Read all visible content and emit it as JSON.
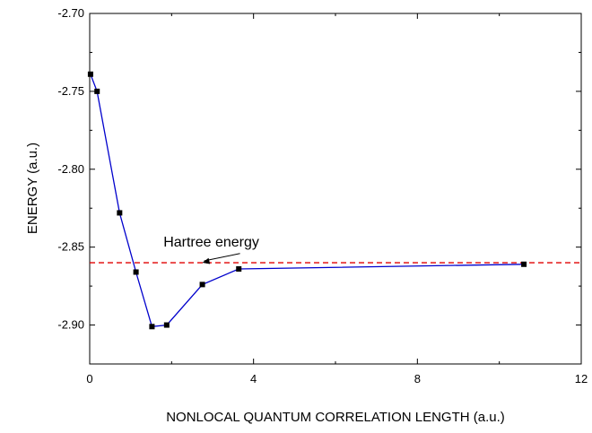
{
  "chart_data": {
    "type": "line",
    "title": "",
    "xlabel": "NONLOCAL QUANTUM CORRELATION LENGTH (a.u.)",
    "ylabel": "ENERGY (a.u.)",
    "xlim": [
      0,
      12
    ],
    "ylim": [
      -2.925,
      -2.7
    ],
    "xticks": [
      0,
      4,
      8,
      12
    ],
    "xtick_labels": [
      "0",
      "4",
      "8",
      "12"
    ],
    "yticks": [
      -2.7,
      -2.75,
      -2.8,
      -2.85,
      -2.9
    ],
    "ytick_labels": [
      "-2.70",
      "-2.75",
      "-2.80",
      "-2.85",
      "-2.90"
    ],
    "grid": false,
    "series": [
      {
        "color": "#0000cc",
        "marker": "square",
        "marker_color": "#000000",
        "x": [
          0.02,
          0.18,
          0.73,
          1.13,
          1.52,
          1.88,
          2.75,
          3.64,
          10.6
        ],
        "y": [
          -2.739,
          -2.75,
          -2.828,
          -2.866,
          -2.901,
          -2.9,
          -2.874,
          -2.864,
          -2.861
        ]
      }
    ],
    "reference_lines": [
      {
        "orientation": "horizontal",
        "y": -2.86,
        "color": "#e00000",
        "style": "dashed"
      }
    ],
    "annotations": [
      {
        "text": "Hartree energy",
        "x": 1.8,
        "y": -2.8495,
        "arrow_to": {
          "x": 2.75,
          "y": -2.86
        }
      }
    ]
  }
}
